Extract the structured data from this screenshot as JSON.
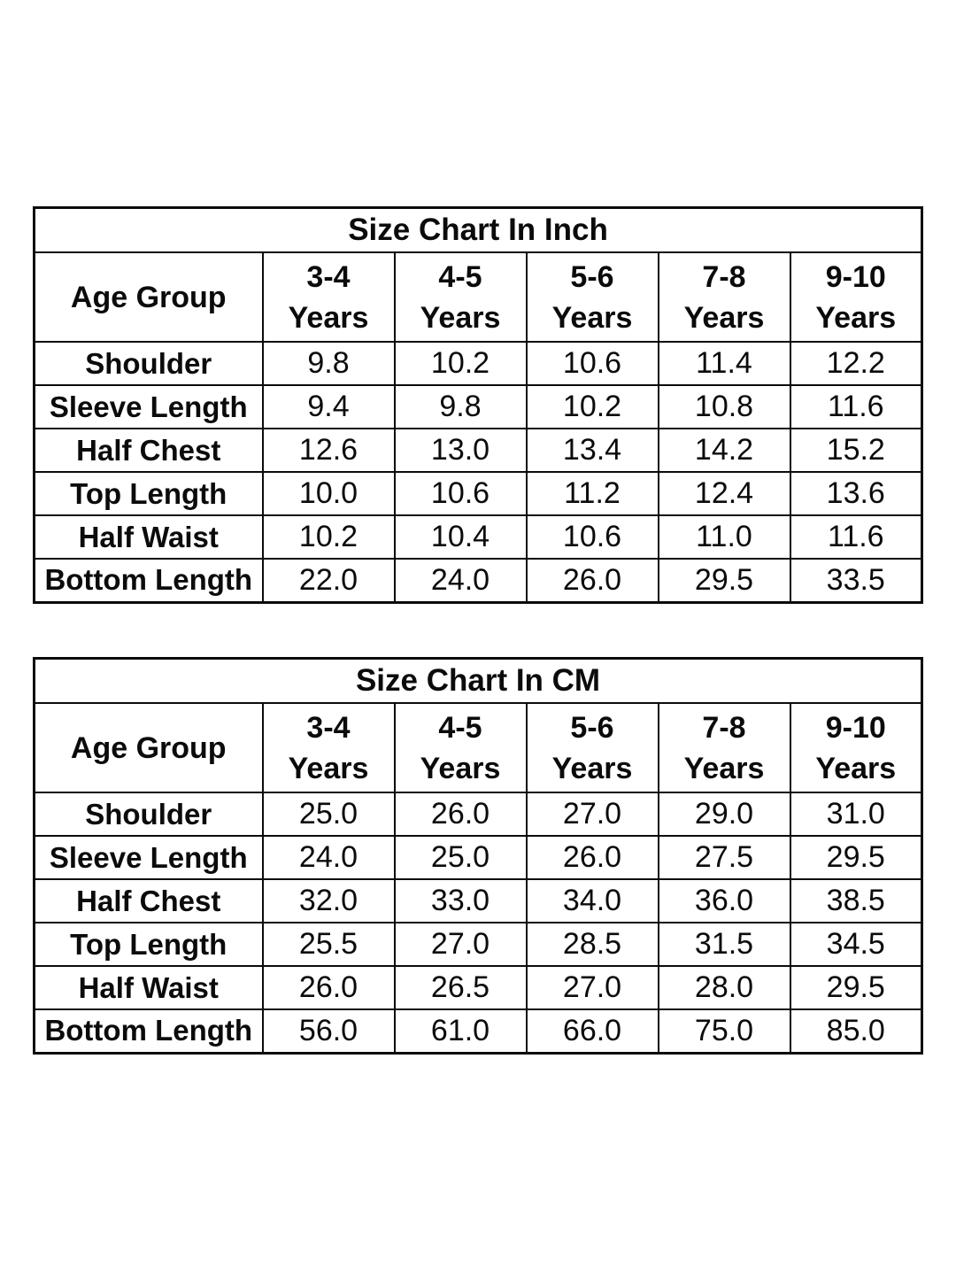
{
  "chart_data": [
    {
      "type": "table",
      "title": "Size Chart In Inch",
      "unit": "inch",
      "corner_header": "Age Group",
      "age_columns": [
        {
          "range": "3-4",
          "unit_label": "Years"
        },
        {
          "range": "4-5",
          "unit_label": "Years"
        },
        {
          "range": "5-6",
          "unit_label": "Years"
        },
        {
          "range": "7-8",
          "unit_label": "Years"
        },
        {
          "range": "9-10",
          "unit_label": "Years"
        }
      ],
      "rows": [
        {
          "label": "Shoulder",
          "values": [
            "9.8",
            "10.2",
            "10.6",
            "11.4",
            "12.2"
          ]
        },
        {
          "label": "Sleeve Length",
          "values": [
            "9.4",
            "9.8",
            "10.2",
            "10.8",
            "11.6"
          ]
        },
        {
          "label": "Half Chest",
          "values": [
            "12.6",
            "13.0",
            "13.4",
            "14.2",
            "15.2"
          ]
        },
        {
          "label": "Top Length",
          "values": [
            "10.0",
            "10.6",
            "11.2",
            "12.4",
            "13.6"
          ]
        },
        {
          "label": "Half Waist",
          "values": [
            "10.2",
            "10.4",
            "10.6",
            "11.0",
            "11.6"
          ]
        },
        {
          "label": "Bottom Length",
          "values": [
            "22.0",
            "24.0",
            "26.0",
            "29.5",
            "33.5"
          ]
        }
      ]
    },
    {
      "type": "table",
      "title": "Size Chart In CM",
      "unit": "cm",
      "corner_header": "Age Group",
      "age_columns": [
        {
          "range": "3-4",
          "unit_label": "Years"
        },
        {
          "range": "4-5",
          "unit_label": "Years"
        },
        {
          "range": "5-6",
          "unit_label": "Years"
        },
        {
          "range": "7-8",
          "unit_label": "Years"
        },
        {
          "range": "9-10",
          "unit_label": "Years"
        }
      ],
      "rows": [
        {
          "label": "Shoulder",
          "values": [
            "25.0",
            "26.0",
            "27.0",
            "29.0",
            "31.0"
          ]
        },
        {
          "label": "Sleeve Length",
          "values": [
            "24.0",
            "25.0",
            "26.0",
            "27.5",
            "29.5"
          ]
        },
        {
          "label": "Half Chest",
          "values": [
            "32.0",
            "33.0",
            "34.0",
            "36.0",
            "38.5"
          ]
        },
        {
          "label": "Top Length",
          "values": [
            "25.5",
            "27.0",
            "28.5",
            "31.5",
            "34.5"
          ]
        },
        {
          "label": "Half Waist",
          "values": [
            "26.0",
            "26.5",
            "27.0",
            "28.0",
            "29.5"
          ]
        },
        {
          "label": "Bottom Length",
          "values": [
            "56.0",
            "61.0",
            "66.0",
            "75.0",
            "85.0"
          ]
        }
      ]
    }
  ],
  "colors": {
    "background": "#ffffff",
    "border": "#0b0b0b",
    "text": "#0b0b0b"
  }
}
